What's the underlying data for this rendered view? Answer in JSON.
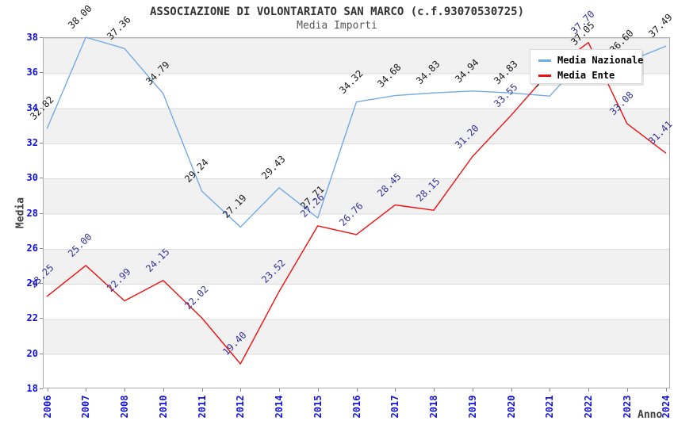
{
  "chart_data": {
    "type": "line",
    "title": "ASSOCIAZIONE DI VOLONTARIATO SAN MARCO (c.f.93070530725)",
    "subtitle": "Media Importi",
    "xlabel": "Anno",
    "ylabel": "Media",
    "ylim": [
      18,
      38
    ],
    "ytick_step": 2,
    "yticks": [
      "38",
      "36",
      "34",
      "32",
      "30",
      "28",
      "26",
      "24",
      "22",
      "20",
      "18"
    ],
    "grid": "horizontal-bands-alternating",
    "band_color": "#f1f1f1",
    "gridline_color": "#dcdcdc",
    "tick_label_color": "#1111dd",
    "legend_position": "top-right",
    "categories": [
      "2006",
      "2007",
      "2008",
      "2010",
      "2011",
      "2012",
      "2014",
      "2015",
      "2016",
      "2017",
      "2018",
      "2019",
      "2020",
      "2021",
      "2022",
      "2023",
      "2024"
    ],
    "series": [
      {
        "name": "Media Nazionale",
        "color": "#72aae4",
        "label_color": "#1a1a1a",
        "values": [
          32.82,
          38.0,
          37.36,
          34.79,
          29.24,
          27.19,
          29.43,
          27.71,
          34.32,
          34.68,
          34.83,
          34.94,
          34.83,
          34.65,
          37.05,
          36.6,
          37.49
        ],
        "labels": [
          "32.82",
          "38.00",
          "37.36",
          "34.79",
          "29.24",
          "27.19",
          "29.43",
          "27.71",
          "34.32",
          "34.68",
          "34.83",
          "34.94",
          "34.83",
          "34.65",
          "37.05",
          "36.60",
          "37.49"
        ]
      },
      {
        "name": "Media Ente",
        "color": "#ee1111",
        "label_color": "#333399",
        "values": [
          23.25,
          25.0,
          22.99,
          24.15,
          22.02,
          19.4,
          23.52,
          27.26,
          26.76,
          28.45,
          28.15,
          31.2,
          33.55,
          36.05,
          37.7,
          33.08,
          31.41
        ],
        "labels": [
          "23.25",
          "25.00",
          "22.99",
          "24.15",
          "22.02",
          "19.40",
          "23.52",
          "27.26",
          "26.76",
          "28.45",
          "28.15",
          "31.20",
          "33.55",
          "",
          "37.70",
          "33.08",
          "31.41"
        ]
      }
    ]
  }
}
